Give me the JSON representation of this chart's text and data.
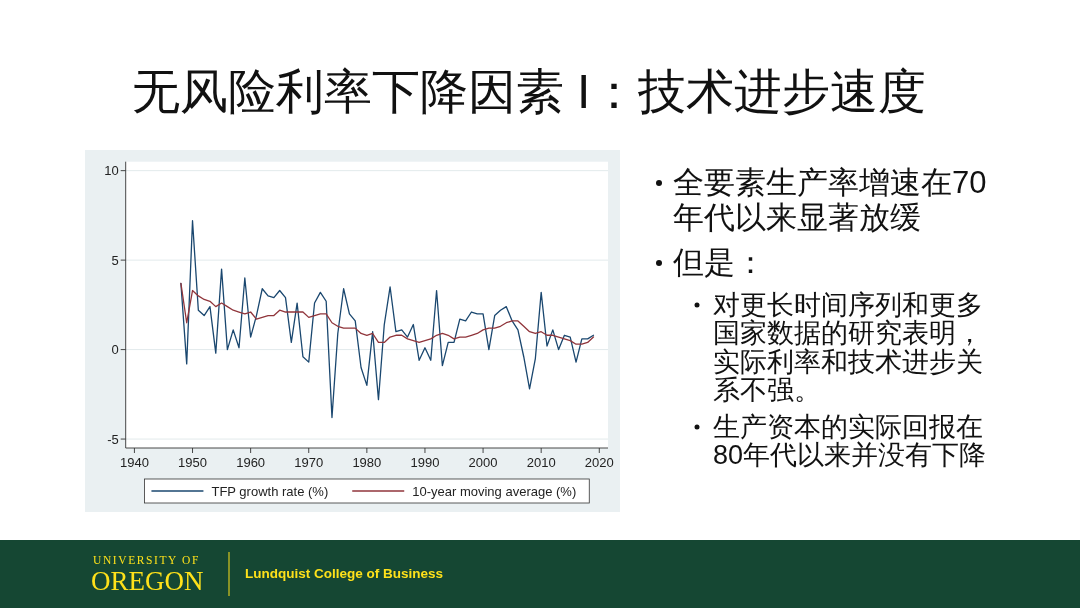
{
  "chart_data": {
    "type": "line",
    "title": "无风险利率下降因素 I：技术进步速度",
    "x": [
      1948,
      1949,
      1950,
      1951,
      1952,
      1953,
      1954,
      1955,
      1956,
      1957,
      1958,
      1959,
      1960,
      1961,
      1962,
      1963,
      1964,
      1965,
      1966,
      1967,
      1968,
      1969,
      1970,
      1971,
      1972,
      1973,
      1974,
      1975,
      1976,
      1977,
      1978,
      1979,
      1980,
      1981,
      1982,
      1983,
      1984,
      1985,
      1986,
      1987,
      1988,
      1989,
      1990,
      1991,
      1992,
      1993,
      1994,
      1995,
      1996,
      1997,
      1998,
      1999,
      2000,
      2001,
      2002,
      2003,
      2004,
      2005,
      2006,
      2007,
      2008,
      2009,
      2010,
      2011,
      2012,
      2013,
      2014,
      2015,
      2016,
      2017,
      2018,
      2019
    ],
    "series": [
      {
        "name": "TFP growth rate (%)",
        "color": "#1a476f",
        "values": [
          3.7,
          -0.8,
          7.2,
          2.2,
          1.9,
          2.4,
          -0.2,
          4.5,
          0.0,
          1.1,
          0.1,
          4.0,
          0.7,
          1.9,
          3.4,
          3.0,
          2.9,
          3.3,
          2.9,
          0.4,
          2.6,
          -0.4,
          -0.7,
          2.6,
          3.2,
          2.7,
          -3.8,
          0.9,
          3.4,
          2.0,
          1.6,
          -1.0,
          -2.0,
          1.0,
          -2.8,
          1.4,
          3.5,
          1.0,
          1.1,
          0.7,
          1.4,
          -0.6,
          0.1,
          -0.6,
          3.3,
          -0.9,
          0.4,
          0.4,
          1.7,
          1.6,
          2.1,
          2.0,
          2.0,
          0.0,
          1.9,
          2.2,
          2.4,
          1.6,
          1.1,
          -0.4,
          -2.2,
          -0.5,
          3.2,
          0.2,
          1.1,
          0.0,
          0.8,
          0.7,
          -0.7,
          0.6,
          0.6,
          0.8
        ]
      },
      {
        "name": "10-year moving average (%)",
        "color": "#90353b",
        "values": [
          3.7,
          1.5,
          3.3,
          3.0,
          2.8,
          2.7,
          2.4,
          2.6,
          2.4,
          2.2,
          2.1,
          2.0,
          2.1,
          1.7,
          1.8,
          1.9,
          1.9,
          2.2,
          2.1,
          2.1,
          2.1,
          2.1,
          1.8,
          1.9,
          2.0,
          2.0,
          1.5,
          1.3,
          1.2,
          1.2,
          1.2,
          0.9,
          0.8,
          0.9,
          0.4,
          0.4,
          0.7,
          0.8,
          0.8,
          0.6,
          0.5,
          0.4,
          0.5,
          0.6,
          0.8,
          0.9,
          0.8,
          0.6,
          0.7,
          0.7,
          0.8,
          0.9,
          1.1,
          1.2,
          1.2,
          1.3,
          1.5,
          1.6,
          1.6,
          1.3,
          1.0,
          0.9,
          1.0,
          0.8,
          0.8,
          0.7,
          0.6,
          0.5,
          0.3,
          0.3,
          0.4,
          0.7
        ]
      }
    ],
    "xlim": [
      1938.5,
      2021.5
    ],
    "ylim": [
      -5.5,
      10.5
    ],
    "xticks": [
      1940,
      1950,
      1960,
      1970,
      1980,
      1990,
      2000,
      2010,
      2020
    ],
    "yticks": [
      -5,
      0,
      5,
      10
    ],
    "grid": "y",
    "legend": "bottom",
    "annotations": [
      "全要素生产率增速在70年代以来显著放缓",
      "但是：",
      "对更长时间序列和更多国家数据的研究表明，实际利率和技术进步关系不强。",
      "生产资本的实际回报在80年代以来并没有下降",
      "UNIVERSITY OF",
      "OREGON",
      "Lundquist College of Business"
    ]
  }
}
